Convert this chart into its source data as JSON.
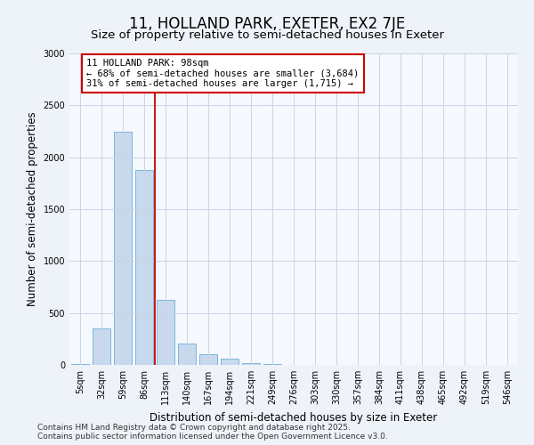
{
  "title": "11, HOLLAND PARK, EXETER, EX2 7JE",
  "subtitle": "Size of property relative to semi-detached houses in Exeter",
  "xlabel": "Distribution of semi-detached houses by size in Exeter",
  "ylabel": "Number of semi-detached properties",
  "categories": [
    "5sqm",
    "32sqm",
    "59sqm",
    "86sqm",
    "113sqm",
    "140sqm",
    "167sqm",
    "194sqm",
    "221sqm",
    "249sqm",
    "276sqm",
    "303sqm",
    "330sqm",
    "357sqm",
    "384sqm",
    "411sqm",
    "438sqm",
    "465sqm",
    "492sqm",
    "519sqm",
    "546sqm"
  ],
  "values": [
    5,
    350,
    2250,
    1875,
    625,
    210,
    100,
    60,
    20,
    5,
    3,
    0,
    0,
    0,
    0,
    0,
    0,
    0,
    0,
    0,
    0
  ],
  "bar_color": "#c8d9ee",
  "bar_edge_color": "#6aaed6",
  "vline_color": "#cc0000",
  "vline_x": 3.5,
  "annotation_text": "11 HOLLAND PARK: 98sqm\n← 68% of semi-detached houses are smaller (3,684)\n31% of semi-detached houses are larger (1,715) →",
  "annotation_box_color": "#ffffff",
  "annotation_box_edge_color": "#cc0000",
  "ylim": [
    0,
    3000
  ],
  "yticks": [
    0,
    500,
    1000,
    1500,
    2000,
    2500,
    3000
  ],
  "footer": "Contains HM Land Registry data © Crown copyright and database right 2025.\nContains public sector information licensed under the Open Government Licence v3.0.",
  "bg_color": "#eef2f9",
  "plot_bg_color": "#f5f8fd",
  "grid_color": "#c8d4e8",
  "title_fontsize": 12,
  "subtitle_fontsize": 9.5,
  "label_fontsize": 8.5,
  "tick_fontsize": 7,
  "footer_fontsize": 6.5,
  "annotation_fontsize": 7.5
}
